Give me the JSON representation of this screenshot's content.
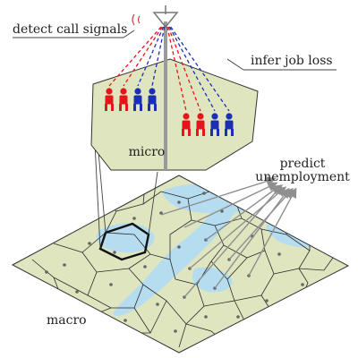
{
  "labels": {
    "detect": "detect call signals",
    "infer": "infer job loss",
    "micro": "micro",
    "predict_line1": "predict",
    "predict_line2": "unemployment",
    "macro": "macro"
  },
  "colors": {
    "employed": "#e8141b",
    "unemployed": "#1b2fb5",
    "land": "#dfe6bf",
    "water": "#b5dcef",
    "cell_edge": "#2a2a2a",
    "tower": "#8a8a8a"
  },
  "people_groups": [
    {
      "name": "left-group",
      "pattern": [
        "employed",
        "employed",
        "unemployed",
        "unemployed"
      ]
    },
    {
      "name": "right-group",
      "pattern": [
        "employed",
        "employed",
        "unemployed",
        "unemployed"
      ]
    }
  ]
}
